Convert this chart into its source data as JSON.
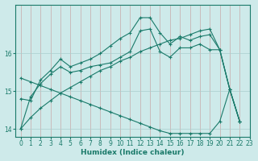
{
  "xlabel": "Humidex (Indice chaleur)",
  "xlim": [
    -0.5,
    23
  ],
  "ylim": [
    13.8,
    17.3
  ],
  "yticks": [
    14,
    15,
    16
  ],
  "xticks": [
    0,
    1,
    2,
    3,
    4,
    5,
    6,
    7,
    8,
    9,
    10,
    11,
    12,
    13,
    14,
    15,
    16,
    17,
    18,
    19,
    20,
    21,
    22,
    23
  ],
  "background_color": "#ceeaea",
  "grid_color": "#aacece",
  "line_color": "#1a7a6a",
  "line1": [
    14.0,
    14.85,
    15.2,
    15.45,
    15.65,
    15.5,
    15.55,
    15.65,
    15.7,
    15.75,
    15.9,
    16.05,
    16.6,
    16.65,
    16.05,
    15.9,
    16.15,
    16.15,
    16.25,
    16.1,
    16.1,
    15.05,
    14.2
  ],
  "line2": [
    14.8,
    14.75,
    15.3,
    15.55,
    15.85,
    15.65,
    15.75,
    15.85,
    16.0,
    16.2,
    16.4,
    16.55,
    16.95,
    16.95,
    16.55,
    16.25,
    16.45,
    16.35,
    16.45,
    16.5,
    16.1,
    15.05,
    14.2
  ],
  "line3": [
    14.0,
    14.3,
    14.55,
    14.75,
    14.95,
    15.1,
    15.25,
    15.4,
    15.55,
    15.65,
    15.8,
    15.9,
    16.05,
    16.15,
    16.25,
    16.35,
    16.4,
    16.5,
    16.6,
    16.65,
    16.1,
    15.05,
    14.2
  ],
  "line4": [
    15.35,
    15.25,
    15.15,
    15.05,
    14.95,
    14.85,
    14.75,
    14.65,
    14.55,
    14.45,
    14.35,
    14.25,
    14.15,
    14.05,
    13.95,
    13.88,
    13.88,
    13.88,
    13.88,
    13.88,
    14.2,
    15.05,
    14.2
  ]
}
